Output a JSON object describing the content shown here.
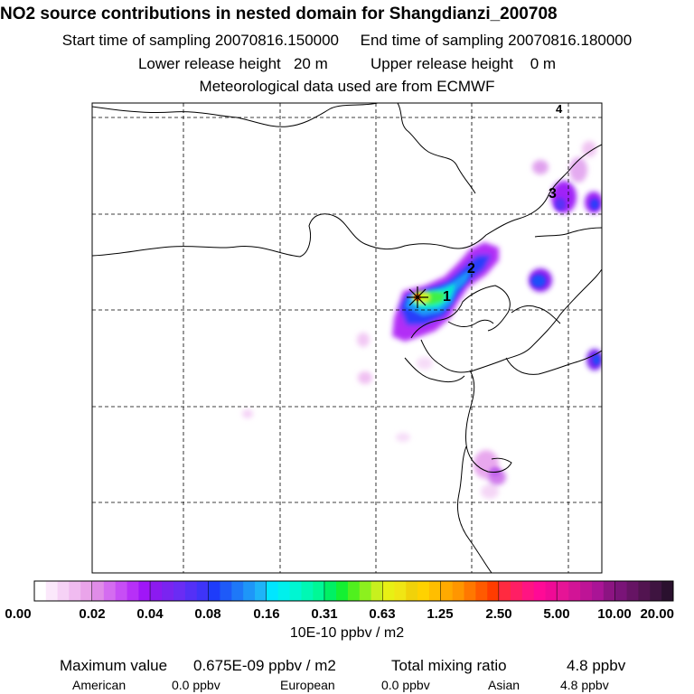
{
  "title": "NO2 source contributions in nested domain for Shangdianzi_200708",
  "sampling": {
    "start_label": "Start time of sampling",
    "start_value": "20070816.150000",
    "end_label": "End time of sampling",
    "end_value": "20070816.180000"
  },
  "release": {
    "lower_label": "Lower release height",
    "lower_value": "20 m",
    "upper_label": "Upper release height",
    "upper_value": "0 m"
  },
  "met_line": "Meteorological data used are from ECMWF",
  "map": {
    "markers": [
      "1",
      "2",
      "3",
      "4"
    ]
  },
  "colorbar": {
    "ticks": [
      "0.00",
      "0.02",
      "0.04",
      "0.08",
      "0.16",
      "0.31",
      "0.63",
      "1.25",
      "2.50",
      "5.00",
      "10.00",
      "20.00"
    ],
    "units": "10E-10 ppbv / m2",
    "colors": [
      [
        "#ffffff",
        "#fbe8fb",
        "#f6d2f6",
        "#f0bbf0",
        "#eaa4ea"
      ],
      [
        "#e08ce8",
        "#d46cf0",
        "#c74ef5",
        "#b730f7",
        "#a016f7"
      ],
      [
        "#8c1af0",
        "#7a24f0",
        "#6a2cf4",
        "#5430f6",
        "#3e34f8"
      ],
      [
        "#1e3cfa",
        "#1e5af8",
        "#1e78f8",
        "#1e96f8",
        "#1eb4f8"
      ],
      [
        "#00e6ff",
        "#00f0ec",
        "#00f6d2",
        "#00f8b4",
        "#00f896"
      ],
      [
        "#00f064",
        "#14f032",
        "#50f01e",
        "#8cf01e",
        "#c8f01e"
      ],
      [
        "#e8f014",
        "#f0e614",
        "#f0d20a",
        "#ffd200",
        "#ffbe00"
      ],
      [
        "#ffaa00",
        "#ff9600",
        "#ff7800",
        "#ff5a00",
        "#ff3c00"
      ],
      [
        "#ff2a40",
        "#ff1e64",
        "#ff1482",
        "#ff0a96",
        "#f00a96"
      ],
      [
        "#e61496",
        "#d21496",
        "#be1496",
        "#aa1496",
        "#8c1482"
      ],
      [
        "#7a1478",
        "#661464",
        "#521450",
        "#3e1440",
        "#2a102e"
      ]
    ]
  },
  "footer": {
    "max_label": "Maximum value",
    "max_value": "0.675E-09 ppbv / m2",
    "total_label": "Total mixing ratio",
    "total_value": "4.8 ppbv",
    "regions": [
      {
        "name": "American",
        "value": "0.0 ppbv"
      },
      {
        "name": "European",
        "value": "0.0 ppbv"
      },
      {
        "name": "Asian",
        "value": "4.8 ppbv"
      }
    ]
  }
}
